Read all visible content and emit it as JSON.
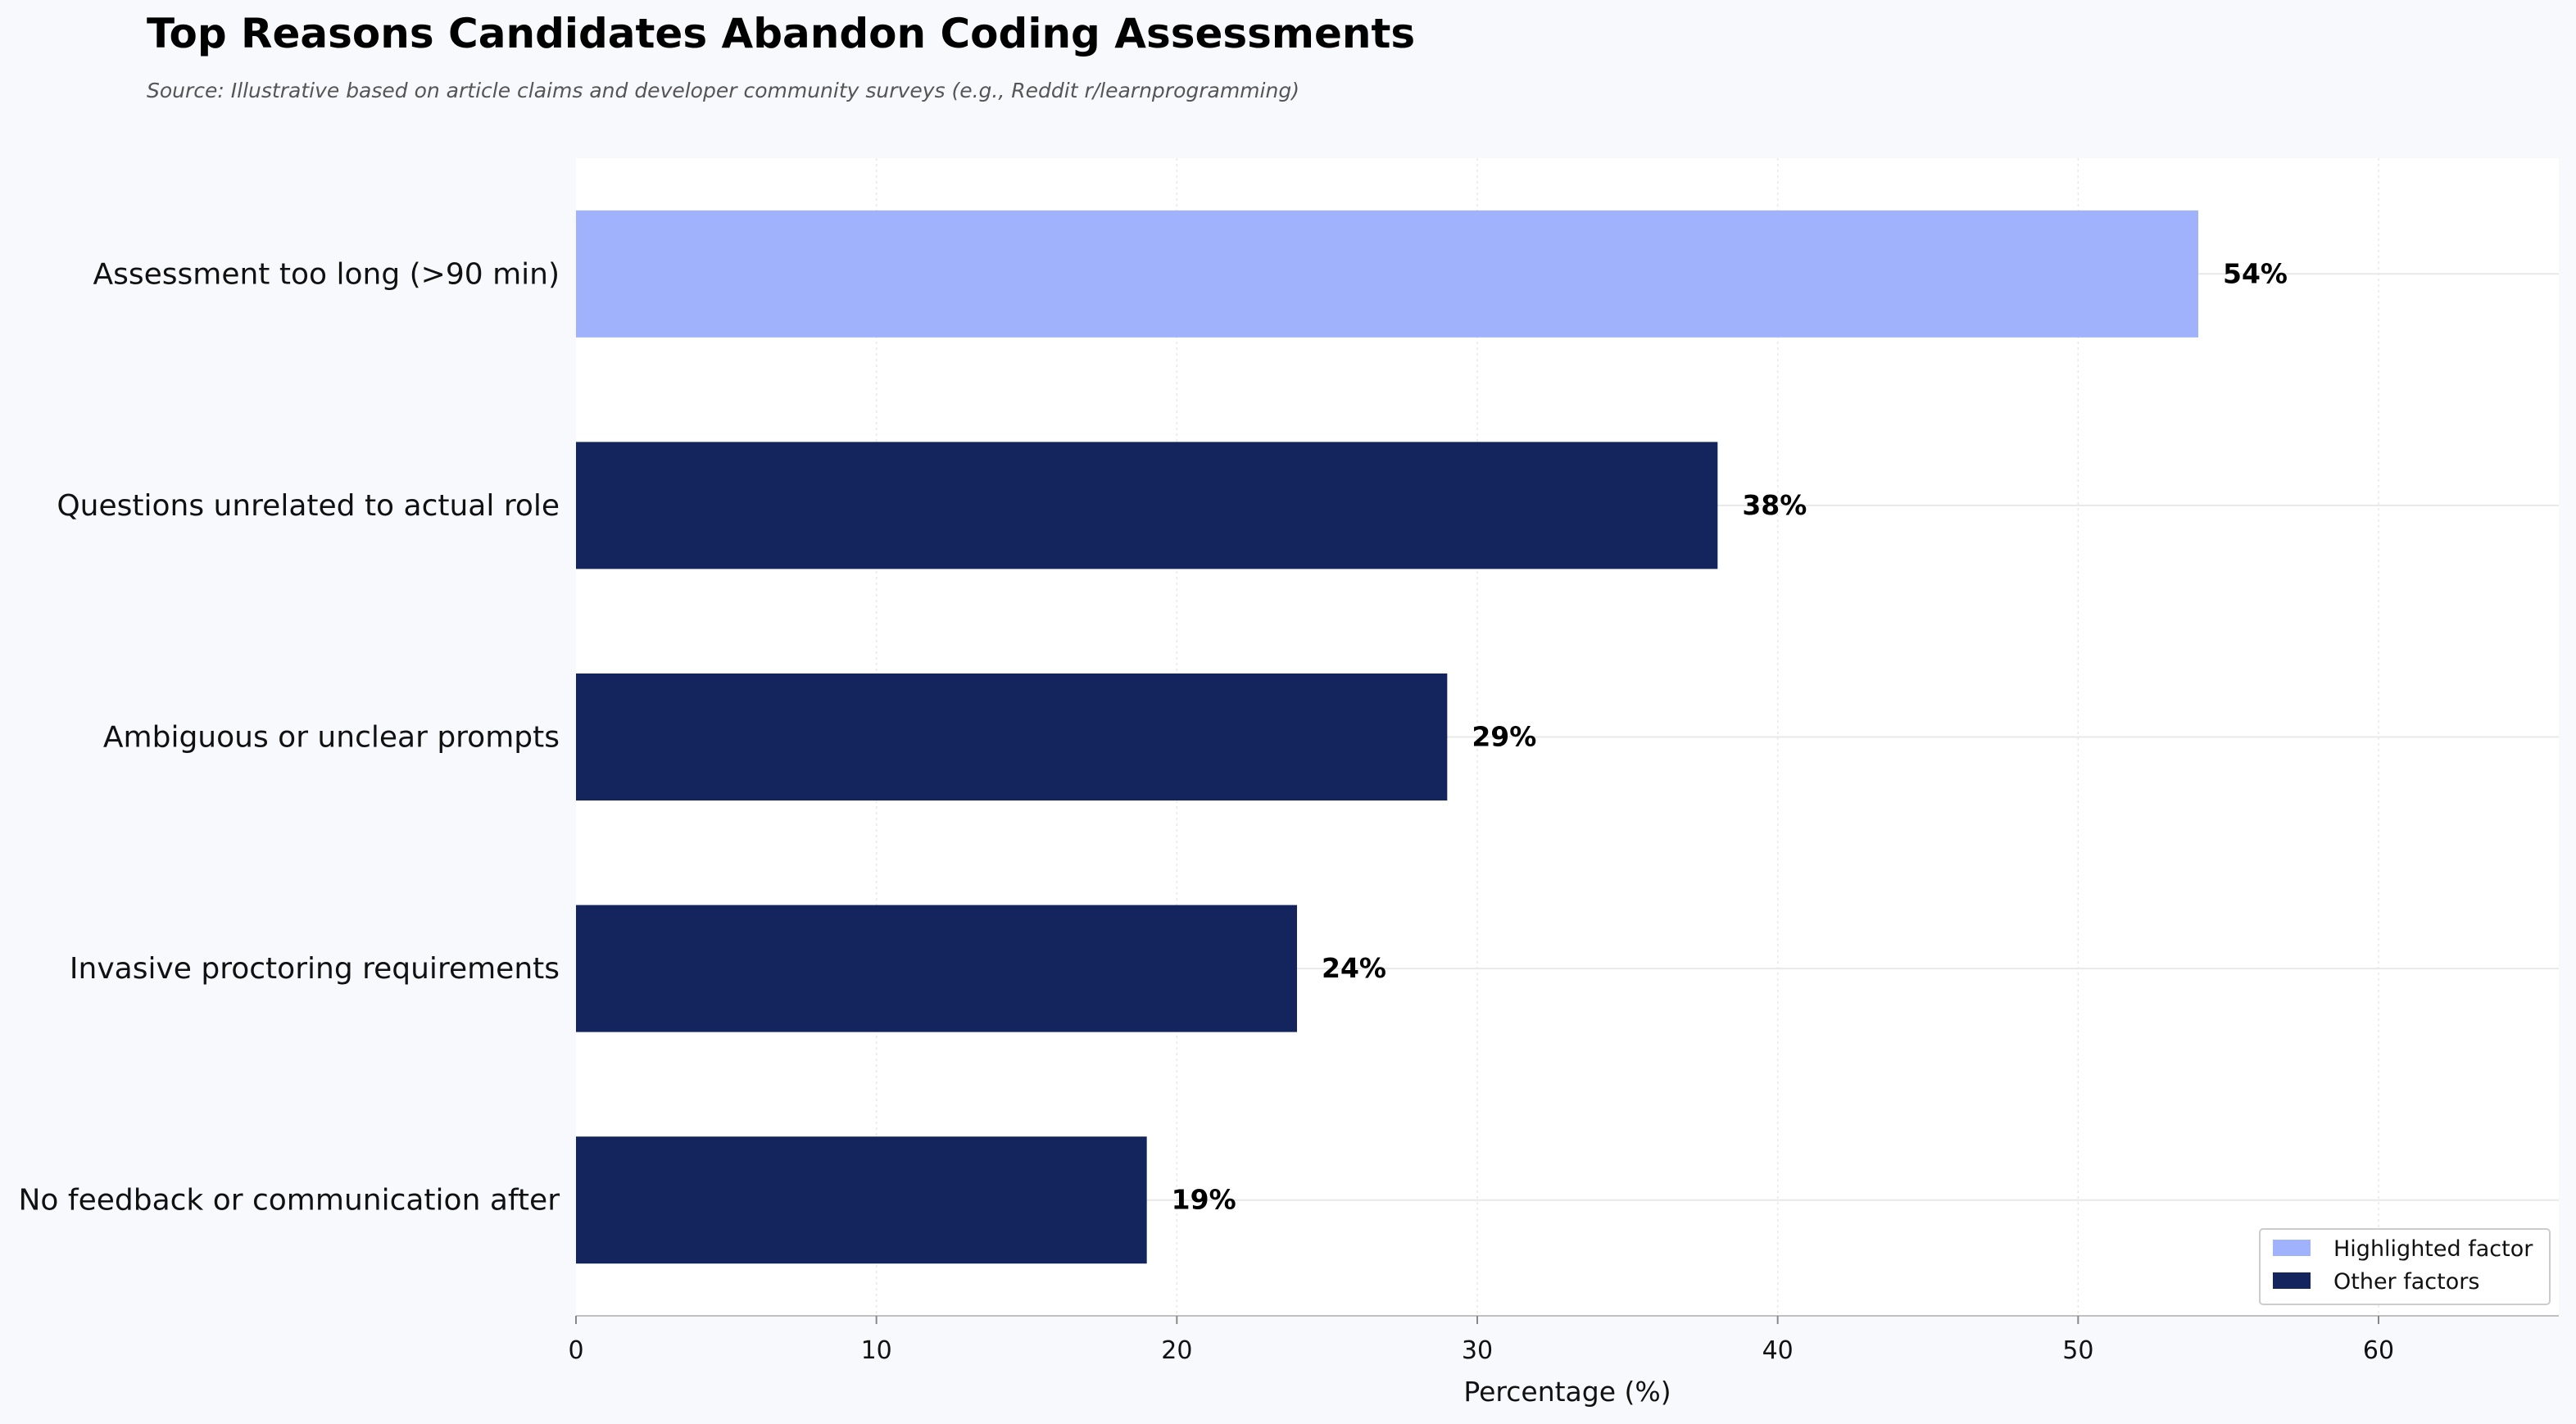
{
  "chart_data": {
    "type": "bar",
    "orientation": "horizontal",
    "title": "Top Reasons Candidates Abandon Coding Assessments",
    "subtitle": "Source: Illustrative based on article claims and developer community surveys (e.g., Reddit r/learnprogramming)",
    "xlabel": "Percentage (%)",
    "ylabel": "",
    "xlim": [
      0,
      66
    ],
    "xticks": [
      0,
      10,
      20,
      30,
      40,
      50,
      60
    ],
    "grid": true,
    "categories": [
      "Assessment too long (>90 min)",
      "Questions unrelated to actual role",
      "Ambiguous or unclear prompts",
      "Invasive proctoring requirements",
      "No feedback or communication after"
    ],
    "values": [
      54,
      38,
      29,
      24,
      19
    ],
    "value_labels": [
      "54%",
      "38%",
      "29%",
      "24%",
      "19%"
    ],
    "highlighted": [
      true,
      false,
      false,
      false,
      false
    ],
    "colors": {
      "highlighted": "#a0b2fb",
      "other": "#14245c",
      "grid": "#e8e8e8",
      "axis": "#c0c0c0"
    },
    "legend": {
      "placement": "lower-right",
      "entries": [
        {
          "label": "Highlighted factor",
          "color": "#a0b2fb"
        },
        {
          "label": "Other factors",
          "color": "#14245c"
        }
      ]
    }
  }
}
